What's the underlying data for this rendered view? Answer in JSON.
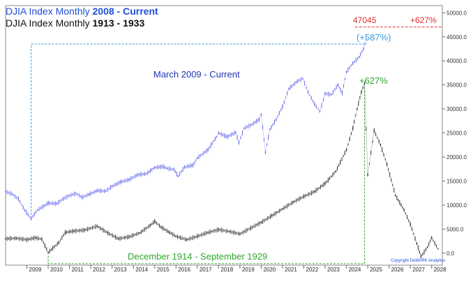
{
  "titles": {
    "line1_prefix": "DJIA Index Monthly ",
    "line1_bold": "2008 - Current",
    "line2_prefix": "DJIA Index Monthly ",
    "line2_bold": "1913 - 1933"
  },
  "annotations": {
    "target_value": "47045",
    "target_pct": "+627%",
    "blue_pct": "(+587%)",
    "green_pct": "+627%",
    "blue_range": "March 2009 - Current",
    "green_range": "December 1914 - September 1929",
    "copyright": "Copyright DeMARK Analytics"
  },
  "colors": {
    "blue_series": "#6b6ef0",
    "black_series": "#333333",
    "blue_annotation": "#3a9be0",
    "green_annotation": "#2ea82e",
    "red_annotation": "#e03030",
    "title_blue": "#1f4fd8"
  },
  "chart_data": {
    "type": "line",
    "x_tick_labels": [
      "2009",
      "2010",
      "2011",
      "2012",
      "2013",
      "2014",
      "2015",
      "2016",
      "2017",
      "2018",
      "2019",
      "2020",
      "2021",
      "2022",
      "2023",
      "2024",
      "2025",
      "2026",
      "2027",
      "2028"
    ],
    "y_tick_labels": [
      "50000.0",
      "45000.0",
      "40000.0",
      "35000.0",
      "30000.0",
      "25000.0",
      "20000.0",
      "15000.0",
      "10000.0",
      "5000.0",
      "0.0"
    ],
    "ylim": [
      -2500,
      51500
    ],
    "xlim": [
      2008.0,
      2028.5
    ],
    "target_line": 47045,
    "grid": false,
    "series": [
      {
        "name": "DJIA Index Monthly 2008 - Current",
        "color": "#6b6ef0",
        "x": [
          2008.0,
          2008.3,
          2008.6,
          2008.9,
          2009.2,
          2009.5,
          2009.8,
          2010.0,
          2010.4,
          2010.7,
          2011.0,
          2011.3,
          2011.6,
          2011.9,
          2012.3,
          2012.7,
          2013.0,
          2013.4,
          2013.8,
          2014.2,
          2014.6,
          2015.0,
          2015.4,
          2015.6,
          2015.9,
          2016.1,
          2016.4,
          2016.8,
          2017.0,
          2017.5,
          2017.9,
          2018.0,
          2018.4,
          2018.8,
          2018.95,
          2019.2,
          2019.5,
          2019.9,
          2020.0,
          2020.2,
          2020.4,
          2020.7,
          2021.0,
          2021.3,
          2021.7,
          2021.95,
          2022.2,
          2022.5,
          2022.75,
          2023.0,
          2023.3,
          2023.6,
          2023.8,
          2024.0,
          2024.3,
          2024.6,
          2024.8,
          2024.95
        ],
        "values": [
          12800,
          12300,
          11300,
          8900,
          7200,
          9000,
          9800,
          10400,
          10300,
          11300,
          12000,
          12400,
          11600,
          12200,
          13000,
          12900,
          13900,
          14800,
          15300,
          16300,
          16500,
          17800,
          18000,
          17600,
          17400,
          16000,
          17900,
          18300,
          19800,
          21500,
          24200,
          25000,
          24200,
          25100,
          23000,
          26000,
          26600,
          27800,
          28800,
          21000,
          25700,
          27800,
          30500,
          34200,
          35800,
          36300,
          33500,
          31000,
          29500,
          33200,
          33000,
          35000,
          33300,
          37700,
          39500,
          40800,
          42500,
          44600
        ]
      },
      {
        "name": "DJIA Index Monthly 1913 - 1933",
        "color": "#333333",
        "x": [
          2008.0,
          2008.5,
          2009.0,
          2009.4,
          2009.7,
          2010.0,
          2010.5,
          2010.8,
          2011.2,
          2011.7,
          2012.0,
          2012.3,
          2012.8,
          2013.3,
          2013.8,
          2014.3,
          2014.8,
          2015.0,
          2015.3,
          2015.7,
          2016.0,
          2016.5,
          2017.0,
          2017.5,
          2018.0,
          2018.5,
          2019.0,
          2019.5,
          2020.0,
          2020.5,
          2021.0,
          2021.5,
          2022.0,
          2022.5,
          2023.0,
          2023.5,
          2024.0,
          2024.3,
          2024.5,
          2024.7,
          2024.85,
          2025.0,
          2025.3,
          2025.6,
          2025.9,
          2026.3,
          2026.7,
          2027.0,
          2027.3,
          2027.5,
          2027.8,
          2028.0,
          2028.3
        ],
        "values": [
          3000,
          3100,
          2800,
          3200,
          2900,
          150,
          2200,
          4300,
          4600,
          4800,
          5200,
          5600,
          4200,
          3000,
          3400,
          4200,
          5800,
          6600,
          5400,
          4300,
          3500,
          2800,
          3500,
          4300,
          4900,
          4500,
          4000,
          5200,
          6400,
          7800,
          9200,
          10600,
          11800,
          12800,
          14500,
          17000,
          21500,
          26000,
          30000,
          33500,
          35400,
          16300,
          25500,
          22500,
          18500,
          12000,
          9000,
          6000,
          2000,
          -700,
          1200,
          3200,
          900
        ]
      }
    ]
  }
}
